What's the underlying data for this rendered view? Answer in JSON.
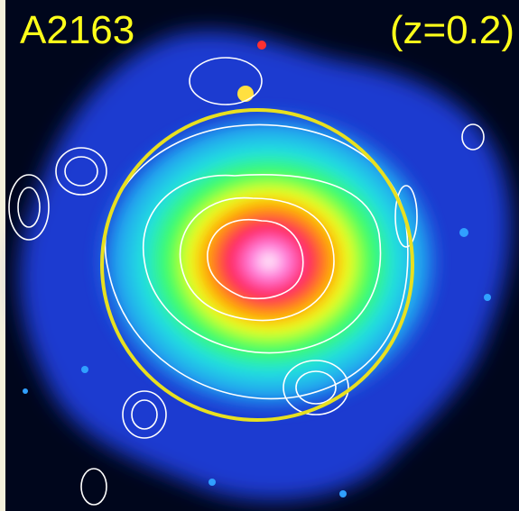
{
  "labels": {
    "name": "A2163",
    "redshift": "(z=0.2)"
  }
}
